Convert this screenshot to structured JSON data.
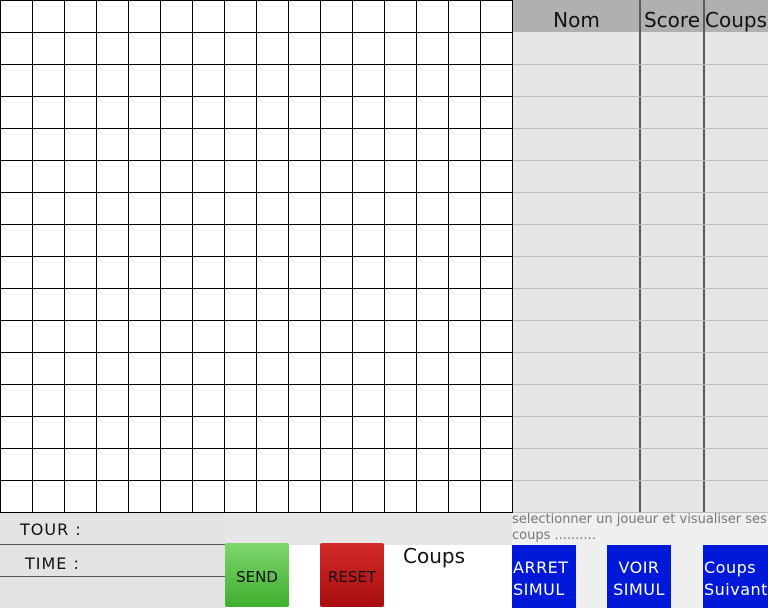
{
  "board": {
    "rows": 16,
    "cols": 16
  },
  "scoreboard": {
    "columns": [
      {
        "key": "nom",
        "label": "Nom"
      },
      {
        "key": "score",
        "label": "Score"
      },
      {
        "key": "coups",
        "label": "Coups"
      }
    ],
    "entries": []
  },
  "status": {
    "tour_label": "TOUR :",
    "time_label": "TIME :"
  },
  "controls": {
    "send_label": "SEND",
    "reset_label": "RESET",
    "coups_label": "Coups",
    "arret_line1": "ARRET",
    "arret_line2": "SIMUL",
    "voir_line1": "VOIR",
    "voir_line2": "SIMUL",
    "suivant_line1": "Coups",
    "suivant_line2": "Suivant"
  },
  "hint": "selectionner un joueur et visualiser ses coups ..........",
  "colors": {
    "send": "#4cbb3a",
    "reset": "#c01818",
    "action_blue": "#0018d8",
    "header_gray": "#b0b0b0"
  }
}
